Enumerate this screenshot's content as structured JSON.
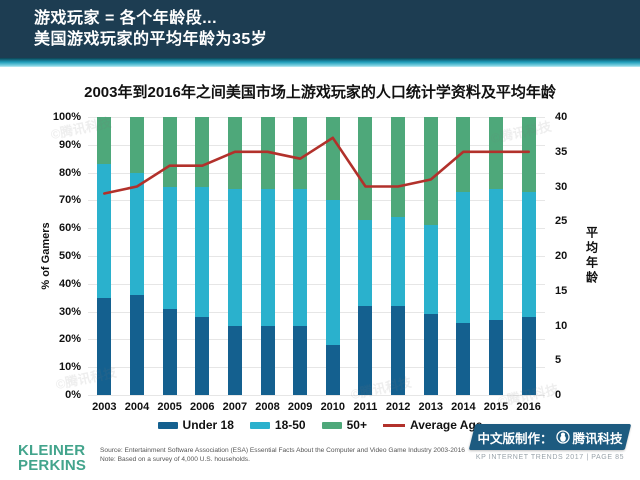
{
  "header": {
    "line1": "游戏玩家 = 各个年龄段...",
    "line2": "美国游戏玩家的平均年龄为35岁"
  },
  "chart_data": {
    "type": "bar",
    "stacked": true,
    "title": "2003年到2016年之间美国市场上游戏玩家的人口统计学资料及平均年龄",
    "categories": [
      "2003",
      "2004",
      "2005",
      "2006",
      "2007",
      "2008",
      "2009",
      "2010",
      "2011",
      "2012",
      "2013",
      "2014",
      "2015",
      "2016"
    ],
    "series": [
      {
        "name": "Under 18",
        "type": "bar",
        "color": "#14608f",
        "axis": "left",
        "values": [
          35,
          36,
          31,
          28,
          25,
          25,
          25,
          18,
          32,
          32,
          29,
          26,
          27,
          28
        ]
      },
      {
        "name": "18-50",
        "type": "bar",
        "color": "#2ab1cd",
        "axis": "left",
        "values": [
          48,
          44,
          44,
          47,
          49,
          49,
          49,
          52,
          31,
          32,
          32,
          47,
          47,
          45
        ]
      },
      {
        "name": "50+",
        "type": "bar",
        "color": "#4ea87a",
        "axis": "left",
        "values": [
          17,
          20,
          25,
          25,
          26,
          26,
          26,
          30,
          37,
          36,
          39,
          27,
          26,
          27
        ]
      },
      {
        "name": "Average Age",
        "type": "line",
        "color": "#b2312b",
        "axis": "right",
        "values": [
          29,
          30,
          33,
          33,
          35,
          35,
          34,
          37,
          30,
          30,
          31,
          35,
          35,
          35
        ]
      }
    ],
    "ylabel_left": "% of Gamers",
    "ylabel_right": "平均年龄",
    "ylim_left": [
      0,
      100
    ],
    "ylim_right": [
      0,
      40
    ],
    "left_ticks": [
      "100%",
      "90%",
      "80%",
      "70%",
      "60%",
      "50%",
      "40%",
      "30%",
      "20%",
      "10%",
      "0%"
    ],
    "right_ticks": [
      "40",
      "35",
      "30",
      "25",
      "20",
      "15",
      "10",
      "5",
      "0"
    ],
    "grid": true,
    "legend_position": "bottom"
  },
  "footer": {
    "kp_line1": "KLEINER",
    "kp_line2": "PERKINS",
    "source_line1": "Source: Entertainment Software Association (ESA) Essential Facts About the Computer and Video Game Industry 2003-2016",
    "source_line2": "Note: Based on a survey of 4,000 U.S. households.",
    "cn_label": "中文版制作：",
    "cn_brand": "腾讯科技",
    "kp_caption": "KP INTERNET TRENDS 2017   |   PAGE 85"
  },
  "watermark": {
    "text": "©腾讯科技"
  }
}
